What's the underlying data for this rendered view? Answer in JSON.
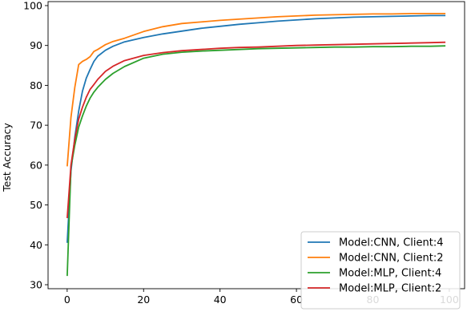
{
  "chart_data": {
    "type": "line",
    "title": "",
    "xlabel": "",
    "ylabel": "Test Accuracy",
    "xlim": [
      -5,
      104
    ],
    "ylim": [
      29,
      101
    ],
    "xticks": [
      0,
      20,
      40,
      60,
      80,
      100
    ],
    "yticks": [
      30,
      40,
      50,
      60,
      70,
      80,
      90,
      100
    ],
    "grid": false,
    "legend_position": "lower right",
    "series": [
      {
        "name": "Model:CNN, Client:4",
        "color": "#1f77b4",
        "x": [
          0,
          1,
          2,
          3,
          4,
          5,
          6,
          7,
          8,
          10,
          12,
          15,
          20,
          25,
          30,
          35,
          40,
          45,
          50,
          55,
          60,
          65,
          70,
          75,
          80,
          85,
          90,
          95,
          99
        ],
        "y": [
          40.5,
          58.5,
          67.0,
          73.5,
          78.5,
          81.8,
          84.0,
          86.0,
          87.3,
          88.8,
          89.8,
          90.9,
          92.0,
          92.9,
          93.6,
          94.3,
          94.8,
          95.3,
          95.7,
          96.1,
          96.4,
          96.7,
          96.9,
          97.1,
          97.2,
          97.3,
          97.4,
          97.5,
          97.5
        ]
      },
      {
        "name": "Model:CNN, Client:2",
        "color": "#ff7f0e",
        "x": [
          0,
          1,
          2,
          3,
          4,
          5,
          6,
          7,
          8,
          10,
          12,
          15,
          20,
          25,
          30,
          35,
          40,
          45,
          50,
          55,
          60,
          65,
          70,
          75,
          80,
          85,
          90,
          95,
          99
        ],
        "y": [
          59.7,
          72.0,
          79.5,
          85.2,
          86.0,
          86.5,
          87.2,
          88.5,
          89.0,
          90.2,
          91.0,
          91.8,
          93.5,
          94.7,
          95.5,
          95.9,
          96.3,
          96.6,
          96.9,
          97.2,
          97.4,
          97.6,
          97.7,
          97.8,
          97.9,
          97.9,
          98.0,
          98.0,
          98.0
        ]
      },
      {
        "name": "Model:MLP, Client:4",
        "color": "#2ca02c",
        "x": [
          0,
          1,
          2,
          3,
          4,
          5,
          6,
          7,
          8,
          10,
          12,
          15,
          20,
          25,
          30,
          35,
          40,
          45,
          50,
          55,
          60,
          65,
          70,
          75,
          80,
          85,
          90,
          95,
          99
        ],
        "y": [
          32.2,
          59.5,
          65.0,
          69.5,
          72.3,
          74.8,
          76.8,
          78.3,
          79.5,
          81.5,
          83.0,
          84.7,
          86.8,
          87.8,
          88.3,
          88.6,
          88.8,
          89.0,
          89.2,
          89.3,
          89.4,
          89.5,
          89.6,
          89.6,
          89.7,
          89.7,
          89.8,
          89.8,
          89.9
        ]
      },
      {
        "name": "Model:MLP, Client:2",
        "color": "#d62728",
        "x": [
          0,
          1,
          2,
          3,
          4,
          5,
          6,
          7,
          8,
          10,
          12,
          15,
          20,
          25,
          30,
          35,
          40,
          45,
          50,
          55,
          60,
          65,
          70,
          75,
          80,
          85,
          90,
          95,
          99
        ],
        "y": [
          46.7,
          60.0,
          66.5,
          71.5,
          74.5,
          77.0,
          79.0,
          80.2,
          81.5,
          83.5,
          84.8,
          86.2,
          87.5,
          88.2,
          88.7,
          89.0,
          89.3,
          89.5,
          89.6,
          89.8,
          90.0,
          90.1,
          90.2,
          90.3,
          90.4,
          90.5,
          90.6,
          90.7,
          90.8
        ]
      }
    ]
  }
}
